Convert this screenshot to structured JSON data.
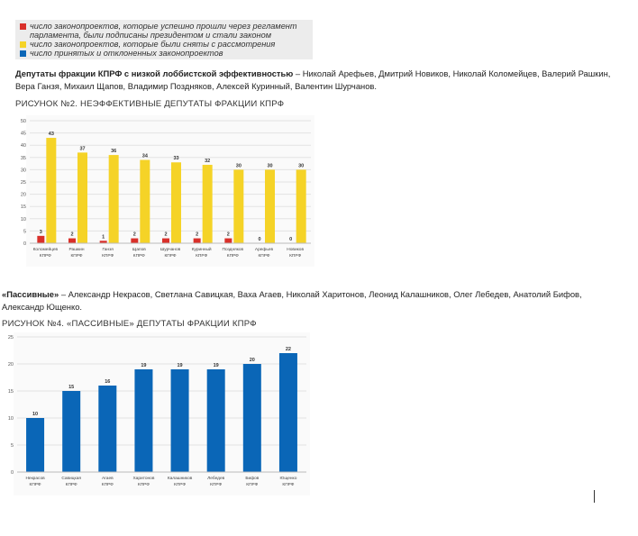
{
  "legend": {
    "items": [
      {
        "color": "#d9302a",
        "line1": "число законопроектов, которые успешно прошли через регламент",
        "line2": "парламента, были подписаны президентом и стали законом"
      },
      {
        "color": "#f5d327",
        "line1": "число законопроектов, которые были сняты с рассмотрения",
        "line2": ""
      },
      {
        "color": "#0a66b7",
        "line1": "число принятых и отклоненных законопроектов",
        "line2": ""
      }
    ]
  },
  "para1": {
    "bold": "Депутаты фракции КПРФ с низкой лоббистской эффективностью",
    "rest": " – Николай Арефьев, Дмитрий Новиков, Николай Коломейцев, Валерий Рашкин,",
    "line2": "Вера Ганзя, Михаил Щапов, Владимир Поздняков, Алексей Куринный, Валентин Шурчанов."
  },
  "para2": {
    "bold": "«Пассивные»",
    "rest": " – Александр Некрасов, Светлана Савицкая, Ваха Агаев, Николай Харитонов, Леонид Калашников, Олег Лебедев, Анатолий Бифов,",
    "line2": "Александр Ющенко."
  },
  "fig2_title": "РИСУНОК №2. НЕЭФФЕКТИВНЫЕ ДЕПУТАТЫ ФРАКЦИИ КПРФ",
  "fig4_title": "РИСУНОК №4. «ПАССИВНЫЕ» ДЕПУТАТЫ ФРАКЦИИ КПРФ",
  "colors": {
    "red": "#d9302a",
    "yellow": "#f5d327",
    "blue": "#0a66b7",
    "grid": "#e3e3e3"
  },
  "chart_data": [
    {
      "type": "bar",
      "title": "РИСУНОК №2. НЕЭФФЕКТИВНЫЕ ДЕПУТАТЫ ФРАКЦИИ КПРФ",
      "categories": [
        [
          "Коломейцев",
          "КПРФ"
        ],
        [
          "Рашкин",
          "КПРФ"
        ],
        [
          "Ганзя",
          "КПРФ"
        ],
        [
          "Щапов",
          "КПРФ"
        ],
        [
          "Шурчанов",
          "КПРФ"
        ],
        [
          "Куринный",
          "КПРФ"
        ],
        [
          "Поздняков",
          "КПРФ"
        ],
        [
          "Арефьев",
          "КПРФ"
        ],
        [
          "Новиков",
          "КПРФ"
        ]
      ],
      "series": [
        {
          "color": "#d9302a",
          "values": [
            3,
            2,
            1,
            2,
            2,
            2,
            2,
            0,
            0
          ]
        },
        {
          "color": "#f5d327",
          "values": [
            43,
            37,
            36,
            34,
            33,
            32,
            30,
            30,
            30
          ]
        }
      ],
      "ylim": [
        0,
        50
      ],
      "yticks": [
        0,
        5,
        10,
        15,
        20,
        25,
        30,
        35,
        40,
        45,
        50
      ],
      "grid": true
    },
    {
      "type": "bar",
      "title": "РИСУНОК №4. «ПАССИВНЫЕ» ДЕПУТАТЫ ФРАКЦИИ КПРФ",
      "categories": [
        [
          "Некрасов",
          "КПРФ"
        ],
        [
          "Савицкая",
          "КПРФ"
        ],
        [
          "Агаев",
          "КПРФ"
        ],
        [
          "Харитонов",
          "КПРФ"
        ],
        [
          "Калашников",
          "КПРФ"
        ],
        [
          "Лебедев",
          "КПРФ"
        ],
        [
          "Бифов",
          "КПРФ"
        ],
        [
          "Ющенко",
          "КПРФ"
        ]
      ],
      "series": [
        {
          "color": "#0a66b7",
          "values": [
            10,
            15,
            16,
            19,
            19,
            19,
            20,
            22
          ]
        }
      ],
      "ylim": [
        0,
        25
      ],
      "yticks": [
        0,
        5,
        10,
        15,
        20,
        25
      ],
      "grid": true
    }
  ]
}
